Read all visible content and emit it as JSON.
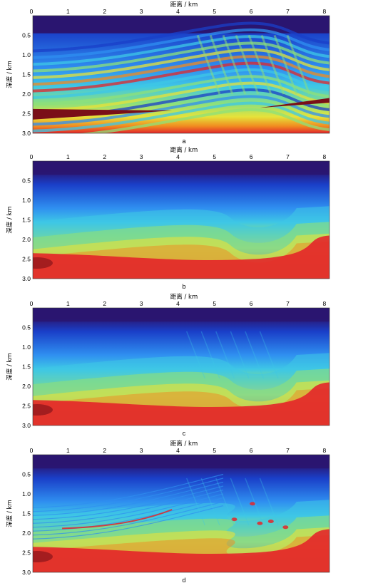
{
  "figure": {
    "panels": [
      {
        "label": "a",
        "image_style": "true velocity model"
      },
      {
        "label": "b",
        "image_style": "smooth initial model"
      },
      {
        "label": "c",
        "image_style": "inversion result"
      },
      {
        "label": "d",
        "image_style": "inversion result"
      }
    ]
  },
  "chart_data": [
    {
      "type": "heatmap",
      "panel_label": "a",
      "title": "",
      "xlabel": "距离 / km",
      "ylabel": "深度 / km",
      "x_ticks": [
        0,
        1,
        2,
        3,
        4,
        5,
        6,
        7,
        8
      ],
      "y_ticks": [
        0.5,
        1.0,
        1.5,
        2.0,
        2.5,
        3.0
      ],
      "y_tick_labels": [
        "0.5",
        "1.0",
        "1.5",
        "2.0",
        "2.5",
        "3.0"
      ],
      "xlim": [
        0,
        8.1
      ],
      "ylim": [
        0,
        3.0
      ],
      "colormap": "jet",
      "colors": [
        "#2a1570",
        "#1a3fc8",
        "#2f8ff0",
        "#3ec7e6",
        "#8ee07a",
        "#e6e23a",
        "#f08a20",
        "#e3262a",
        "#7a0f18"
      ],
      "features": {
        "style": "layered",
        "dark_top_layer": true,
        "bright_layers_at_depth": true,
        "thrust_structure_near_x": 5.5
      }
    },
    {
      "type": "heatmap",
      "panel_label": "b",
      "title": "",
      "xlabel": "距离 / km",
      "ylabel": "深度 / km",
      "x_ticks": [
        0,
        1,
        2,
        3,
        4,
        5,
        6,
        7,
        8
      ],
      "y_ticks": [
        0.5,
        1.0,
        1.5,
        2.0,
        2.5,
        3.0
      ],
      "y_tick_labels": [
        "0.5",
        "1.0",
        "1.5",
        "2.0",
        "2.5",
        "3.0"
      ],
      "xlim": [
        0,
        8.1
      ],
      "ylim": [
        0,
        3.0
      ],
      "colormap": "jet",
      "colors": [
        "#2a1570",
        "#1a3fc8",
        "#2f8ff0",
        "#3ec7e6",
        "#8ee07a",
        "#e6e23a",
        "#f08a20",
        "#e3262a",
        "#7a0f18"
      ],
      "features": {
        "style": "smooth",
        "dark_top_layer": true,
        "red_base_layer": true,
        "uplift_near_x": 4.5,
        "bowl_near_x": 6.0
      }
    },
    {
      "type": "heatmap",
      "panel_label": "c",
      "title": "",
      "xlabel": "距离 / km",
      "ylabel": "深度 / km",
      "x_ticks": [
        0,
        1,
        2,
        3,
        4,
        5,
        6,
        7,
        8
      ],
      "y_ticks": [
        0.5,
        1.0,
        1.5,
        2.0,
        2.5,
        3.0
      ],
      "y_tick_labels": [
        "0.5",
        "1.0",
        "1.5",
        "2.0",
        "2.5",
        "3.0"
      ],
      "xlim": [
        0,
        8.1
      ],
      "ylim": [
        0,
        3.0
      ],
      "colormap": "jet",
      "colors": [
        "#2a1570",
        "#1a3fc8",
        "#2f8ff0",
        "#3ec7e6",
        "#8ee07a",
        "#e6e23a",
        "#f08a20",
        "#e3262a",
        "#7a0f18"
      ],
      "features": {
        "style": "smooth-with-detail",
        "dark_top_layer": true,
        "red_base_layer": true,
        "uplift_near_x": 4.5,
        "bowl_near_x": 6.0
      }
    },
    {
      "type": "heatmap",
      "panel_label": "d",
      "title": "",
      "xlabel": "距离 / km",
      "ylabel": "深度 / km",
      "x_ticks": [
        0,
        1,
        2,
        3,
        4,
        5,
        6,
        7,
        8
      ],
      "y_ticks": [
        0.5,
        1.0,
        1.5,
        2.0,
        2.5,
        3.0
      ],
      "y_tick_labels": [
        "0.5",
        "1.0",
        "1.5",
        "2.0",
        "2.5",
        "3.0"
      ],
      "xlim": [
        0,
        8.1
      ],
      "ylim": [
        0,
        3.0
      ],
      "colormap": "jet",
      "colors": [
        "#2a1570",
        "#1a3fc8",
        "#2f8ff0",
        "#3ec7e6",
        "#8ee07a",
        "#e6e23a",
        "#f08a20",
        "#e3262a",
        "#7a0f18"
      ],
      "features": {
        "style": "detailed",
        "dark_top_layer": true,
        "red_base_layer": true,
        "thrust_structure_near_x": 5.5,
        "red_streaks_at_depth": true
      }
    }
  ]
}
